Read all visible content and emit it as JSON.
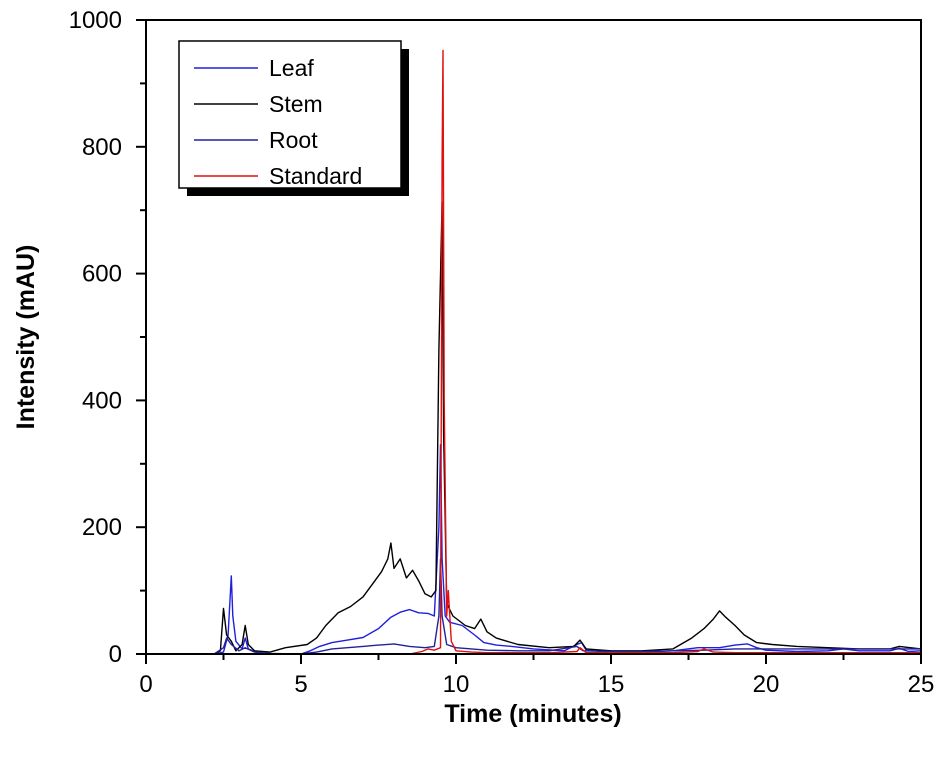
{
  "chart_data": {
    "type": "line",
    "title": "",
    "xlabel": "Time (minutes)",
    "ylabel": "Intensity (mAU)",
    "xlim": [
      0,
      25
    ],
    "ylim": [
      0,
      1000
    ],
    "xticks": [
      0,
      5,
      10,
      15,
      20,
      25
    ],
    "yticks": [
      0,
      200,
      400,
      600,
      800,
      1000
    ],
    "x_minor_step": 2.5,
    "y_minor_step": 100,
    "grid": false,
    "legend_position": "upper-left",
    "series": [
      {
        "name": "Leaf",
        "color": "#1f1fe0",
        "points": [
          [
            0,
            0
          ],
          [
            2.2,
            0
          ],
          [
            2.5,
            3
          ],
          [
            2.65,
            30
          ],
          [
            2.75,
            123
          ],
          [
            2.8,
            60
          ],
          [
            2.9,
            20
          ],
          [
            3.1,
            8
          ],
          [
            3.2,
            25
          ],
          [
            3.3,
            8
          ],
          [
            3.6,
            2
          ],
          [
            4,
            0
          ],
          [
            5,
            0
          ],
          [
            5.3,
            5
          ],
          [
            5.6,
            12
          ],
          [
            6,
            18
          ],
          [
            6.5,
            22
          ],
          [
            7,
            26
          ],
          [
            7.5,
            40
          ],
          [
            7.9,
            58
          ],
          [
            8.2,
            66
          ],
          [
            8.5,
            70
          ],
          [
            8.8,
            65
          ],
          [
            9.1,
            64
          ],
          [
            9.3,
            60
          ],
          [
            9.45,
            200
          ],
          [
            9.5,
            330
          ],
          [
            9.55,
            150
          ],
          [
            9.65,
            60
          ],
          [
            9.8,
            50
          ],
          [
            10.2,
            45
          ],
          [
            10.6,
            30
          ],
          [
            10.9,
            18
          ],
          [
            11.3,
            14
          ],
          [
            11.8,
            12
          ],
          [
            12.5,
            8
          ],
          [
            13.5,
            5
          ],
          [
            13.9,
            15
          ],
          [
            14.05,
            18
          ],
          [
            14.2,
            6
          ],
          [
            15,
            3
          ],
          [
            16,
            3
          ],
          [
            17,
            5
          ],
          [
            17.8,
            10
          ],
          [
            18.5,
            10
          ],
          [
            19,
            14
          ],
          [
            19.4,
            16
          ],
          [
            19.7,
            10
          ],
          [
            20,
            6
          ],
          [
            21,
            4
          ],
          [
            22,
            5
          ],
          [
            22.5,
            8
          ],
          [
            23,
            5
          ],
          [
            24,
            5
          ],
          [
            24.3,
            9
          ],
          [
            24.6,
            4
          ],
          [
            25,
            5
          ]
        ]
      },
      {
        "name": "Stem",
        "color": "#000000",
        "points": [
          [
            0,
            0
          ],
          [
            2.2,
            0
          ],
          [
            2.4,
            5
          ],
          [
            2.5,
            72
          ],
          [
            2.6,
            30
          ],
          [
            2.75,
            20
          ],
          [
            2.9,
            5
          ],
          [
            3.1,
            15
          ],
          [
            3.2,
            45
          ],
          [
            3.3,
            15
          ],
          [
            3.5,
            5
          ],
          [
            4,
            3
          ],
          [
            4.5,
            10
          ],
          [
            5.2,
            15
          ],
          [
            5.5,
            25
          ],
          [
            5.8,
            45
          ],
          [
            6.2,
            65
          ],
          [
            6.6,
            75
          ],
          [
            7,
            90
          ],
          [
            7.3,
            110
          ],
          [
            7.6,
            130
          ],
          [
            7.8,
            150
          ],
          [
            7.9,
            175
          ],
          [
            8.0,
            135
          ],
          [
            8.2,
            150
          ],
          [
            8.4,
            120
          ],
          [
            8.6,
            132
          ],
          [
            8.8,
            115
          ],
          [
            9.0,
            95
          ],
          [
            9.2,
            90
          ],
          [
            9.35,
            100
          ],
          [
            9.45,
            480
          ],
          [
            9.55,
            713
          ],
          [
            9.6,
            350
          ],
          [
            9.7,
            80
          ],
          [
            9.9,
            60
          ],
          [
            10.3,
            45
          ],
          [
            10.6,
            40
          ],
          [
            10.8,
            55
          ],
          [
            11.0,
            35
          ],
          [
            11.3,
            25
          ],
          [
            12,
            15
          ],
          [
            13,
            10
          ],
          [
            13.8,
            12
          ],
          [
            14.0,
            22
          ],
          [
            14.2,
            8
          ],
          [
            15,
            5
          ],
          [
            16,
            5
          ],
          [
            17,
            8
          ],
          [
            17.6,
            25
          ],
          [
            18.0,
            40
          ],
          [
            18.3,
            55
          ],
          [
            18.5,
            68
          ],
          [
            18.7,
            58
          ],
          [
            19.0,
            45
          ],
          [
            19.3,
            30
          ],
          [
            19.7,
            18
          ],
          [
            20.2,
            15
          ],
          [
            21,
            12
          ],
          [
            22,
            10
          ],
          [
            23,
            8
          ],
          [
            24,
            8
          ],
          [
            24.3,
            12
          ],
          [
            25,
            8
          ]
        ]
      },
      {
        "name": "Root",
        "color": "#22229a",
        "points": [
          [
            0,
            0
          ],
          [
            2.2,
            0
          ],
          [
            2.5,
            10
          ],
          [
            2.6,
            25
          ],
          [
            2.75,
            15
          ],
          [
            3.0,
            5
          ],
          [
            3.2,
            10
          ],
          [
            3.5,
            3
          ],
          [
            4,
            1
          ],
          [
            5,
            0
          ],
          [
            5.5,
            3
          ],
          [
            6,
            8
          ],
          [
            6.5,
            10
          ],
          [
            7,
            12
          ],
          [
            7.5,
            14
          ],
          [
            8,
            16
          ],
          [
            8.5,
            12
          ],
          [
            9.0,
            10
          ],
          [
            9.3,
            12
          ],
          [
            9.45,
            60
          ],
          [
            9.5,
            150
          ],
          [
            9.55,
            60
          ],
          [
            9.7,
            15
          ],
          [
            10,
            10
          ],
          [
            10.5,
            8
          ],
          [
            11,
            6
          ],
          [
            12,
            5
          ],
          [
            13,
            5
          ],
          [
            13.9,
            12
          ],
          [
            14.1,
            5
          ],
          [
            15,
            4
          ],
          [
            16,
            4
          ],
          [
            17,
            5
          ],
          [
            18,
            6
          ],
          [
            19,
            8
          ],
          [
            20,
            8
          ],
          [
            21,
            8
          ],
          [
            22,
            8
          ],
          [
            23,
            8
          ],
          [
            24,
            8
          ],
          [
            25,
            8
          ]
        ]
      },
      {
        "name": "Standard",
        "color": "#e01010",
        "points": [
          [
            0,
            0
          ],
          [
            8.5,
            0
          ],
          [
            8.9,
            4
          ],
          [
            9.1,
            8
          ],
          [
            9.3,
            6
          ],
          [
            9.5,
            10
          ],
          [
            9.55,
            780
          ],
          [
            9.58,
            952
          ],
          [
            9.62,
            400
          ],
          [
            9.7,
            60
          ],
          [
            9.75,
            100
          ],
          [
            9.85,
            20
          ],
          [
            10,
            5
          ],
          [
            10.5,
            3
          ],
          [
            11,
            2
          ],
          [
            12,
            2
          ],
          [
            13,
            2
          ],
          [
            13.9,
            4
          ],
          [
            14.0,
            10
          ],
          [
            14.2,
            2
          ],
          [
            15,
            2
          ],
          [
            16,
            2
          ],
          [
            17,
            2
          ],
          [
            17.8,
            4
          ],
          [
            18,
            8
          ],
          [
            18.3,
            3
          ],
          [
            19,
            2
          ],
          [
            20,
            2
          ],
          [
            21,
            2
          ],
          [
            22,
            2
          ],
          [
            23,
            2
          ],
          [
            24,
            2
          ],
          [
            25,
            2
          ]
        ]
      }
    ]
  },
  "legend": {
    "items": [
      {
        "label": "Leaf",
        "color": "#1f1fe0"
      },
      {
        "label": "Stem",
        "color": "#000000"
      },
      {
        "label": "Root",
        "color": "#22229a"
      },
      {
        "label": "Standard",
        "color": "#e01010"
      }
    ]
  },
  "axes": {
    "x_title": "Time (minutes)",
    "y_title": "Intensity (mAU)",
    "x_tick_labels": [
      "0",
      "5",
      "10",
      "15",
      "20",
      "25"
    ],
    "y_tick_labels": [
      "0",
      "200",
      "400",
      "600",
      "800",
      "1000"
    ]
  }
}
